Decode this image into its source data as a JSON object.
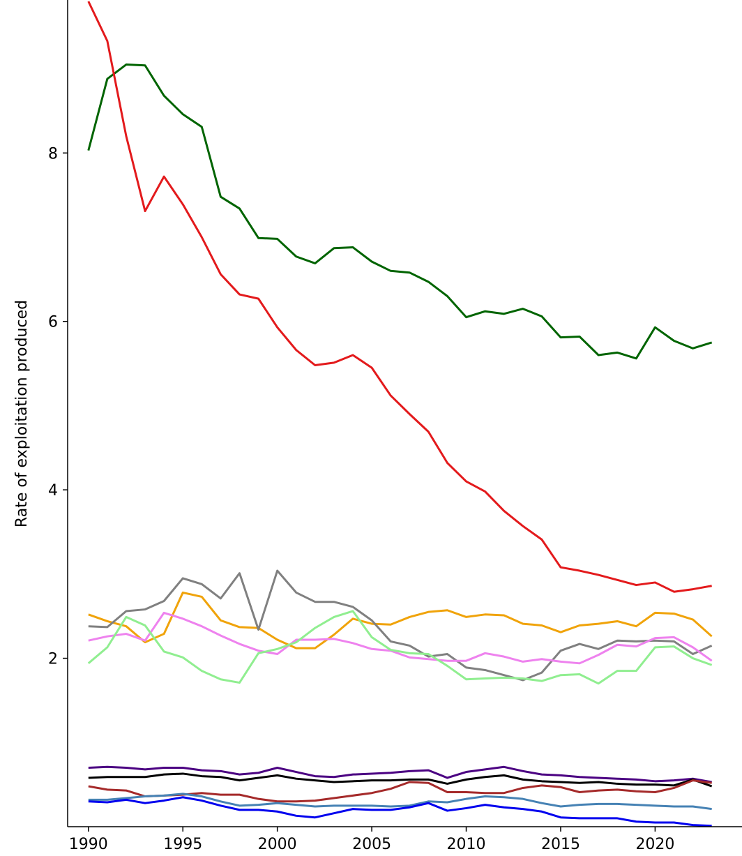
{
  "chart_data": {
    "type": "line",
    "ylabel": "Rate of exploitation produced",
    "x": [
      1990,
      1991,
      1992,
      1993,
      1994,
      1995,
      1996,
      1997,
      1998,
      1999,
      2000,
      2001,
      2002,
      2003,
      2004,
      2005,
      2006,
      2007,
      2008,
      2009,
      2010,
      2011,
      2012,
      2013,
      2014,
      2015,
      2016,
      2017,
      2018,
      2019,
      2020,
      2021,
      2022,
      2023
    ],
    "xlim": [
      1988.9,
      2024.6
    ],
    "xticks": [
      1990,
      1995,
      2000,
      2005,
      2010,
      2015,
      2020
    ],
    "ylim": [
      0,
      9.8
    ],
    "yticks": [
      2,
      4,
      6,
      8
    ],
    "grid": false,
    "series": [
      {
        "color": "#006400",
        "values": [
          8.03,
          8.88,
          9.05,
          9.04,
          8.68,
          8.46,
          8.31,
          7.48,
          7.34,
          6.99,
          6.98,
          6.77,
          6.69,
          6.87,
          6.88,
          6.71,
          6.6,
          6.58,
          6.47,
          6.3,
          6.05,
          6.12,
          6.09,
          6.15,
          6.06,
          5.81,
          5.82,
          5.6,
          5.63,
          5.56,
          5.93,
          5.77,
          5.68,
          5.75
        ]
      },
      {
        "color": "#e31a1c",
        "values": [
          9.8,
          9.33,
          8.2,
          7.31,
          7.72,
          7.39,
          7.0,
          6.56,
          6.32,
          6.27,
          5.93,
          5.66,
          5.48,
          5.51,
          5.6,
          5.45,
          5.12,
          4.9,
          4.69,
          4.32,
          4.1,
          3.98,
          3.75,
          3.57,
          3.41,
          3.08,
          3.04,
          2.99,
          2.93,
          2.87,
          2.9,
          2.79,
          2.82,
          2.86
        ]
      },
      {
        "color": "#f0a30a",
        "values": [
          2.52,
          2.44,
          2.38,
          2.19,
          2.29,
          2.78,
          2.73,
          2.45,
          2.37,
          2.36,
          2.22,
          2.12,
          2.12,
          2.28,
          2.47,
          2.41,
          2.4,
          2.49,
          2.55,
          2.57,
          2.49,
          2.52,
          2.51,
          2.41,
          2.39,
          2.31,
          2.39,
          2.41,
          2.44,
          2.38,
          2.54,
          2.53,
          2.46,
          2.26
        ]
      },
      {
        "color": "#808080",
        "values": [
          2.38,
          2.37,
          2.56,
          2.58,
          2.68,
          2.95,
          2.88,
          2.71,
          3.01,
          2.34,
          3.04,
          2.78,
          2.67,
          2.67,
          2.61,
          2.45,
          2.2,
          2.15,
          2.02,
          2.05,
          1.89,
          1.86,
          1.8,
          1.74,
          1.83,
          2.09,
          2.17,
          2.11,
          2.21,
          2.2,
          2.21,
          2.2,
          2.05,
          2.15
        ]
      },
      {
        "color": "#ee82ee",
        "values": [
          2.21,
          2.26,
          2.29,
          2.21,
          2.54,
          2.47,
          2.38,
          2.27,
          2.17,
          2.09,
          2.05,
          2.22,
          2.22,
          2.23,
          2.18,
          2.11,
          2.09,
          2.01,
          1.99,
          1.97,
          1.97,
          2.06,
          2.02,
          1.96,
          1.99,
          1.96,
          1.94,
          2.04,
          2.16,
          2.14,
          2.24,
          2.25,
          2.13,
          1.97
        ]
      },
      {
        "color": "#90ee90",
        "values": [
          1.94,
          2.13,
          2.49,
          2.39,
          2.08,
          2.01,
          1.85,
          1.75,
          1.71,
          2.06,
          2.11,
          2.19,
          2.36,
          2.49,
          2.56,
          2.25,
          2.1,
          2.06,
          2.05,
          1.91,
          1.75,
          1.76,
          1.77,
          1.76,
          1.73,
          1.8,
          1.81,
          1.7,
          1.85,
          1.85,
          2.13,
          2.14,
          2.0,
          1.92
        ]
      },
      {
        "color": "#4b0082",
        "values": [
          0.7,
          0.71,
          0.7,
          0.68,
          0.7,
          0.7,
          0.67,
          0.66,
          0.62,
          0.64,
          0.7,
          0.65,
          0.6,
          0.59,
          0.62,
          0.63,
          0.64,
          0.66,
          0.67,
          0.58,
          0.65,
          0.68,
          0.71,
          0.66,
          0.62,
          0.61,
          0.59,
          0.58,
          0.57,
          0.56,
          0.54,
          0.55,
          0.57,
          0.53
        ]
      },
      {
        "color": "#000000",
        "values": [
          0.58,
          0.59,
          0.59,
          0.59,
          0.62,
          0.63,
          0.6,
          0.59,
          0.55,
          0.58,
          0.61,
          0.57,
          0.55,
          0.53,
          0.54,
          0.55,
          0.55,
          0.56,
          0.56,
          0.51,
          0.56,
          0.59,
          0.61,
          0.56,
          0.54,
          0.53,
          0.52,
          0.53,
          0.51,
          0.5,
          0.5,
          0.49,
          0.56,
          0.48
        ]
      },
      {
        "color": "#a52a2a",
        "values": [
          0.48,
          0.44,
          0.43,
          0.36,
          0.37,
          0.38,
          0.4,
          0.38,
          0.38,
          0.33,
          0.3,
          0.3,
          0.31,
          0.34,
          0.37,
          0.4,
          0.45,
          0.53,
          0.52,
          0.41,
          0.41,
          0.4,
          0.4,
          0.46,
          0.49,
          0.47,
          0.41,
          0.43,
          0.44,
          0.42,
          0.41,
          0.46,
          0.55,
          0.52
        ]
      },
      {
        "color": "#4682b4",
        "values": [
          0.32,
          0.32,
          0.34,
          0.36,
          0.37,
          0.39,
          0.36,
          0.3,
          0.25,
          0.26,
          0.28,
          0.26,
          0.24,
          0.25,
          0.25,
          0.25,
          0.24,
          0.25,
          0.3,
          0.29,
          0.33,
          0.36,
          0.35,
          0.33,
          0.28,
          0.24,
          0.26,
          0.27,
          0.27,
          0.26,
          0.25,
          0.24,
          0.24,
          0.21
        ]
      },
      {
        "color": "#0000ee",
        "values": [
          0.3,
          0.29,
          0.32,
          0.28,
          0.31,
          0.35,
          0.31,
          0.25,
          0.2,
          0.2,
          0.18,
          0.13,
          0.11,
          0.16,
          0.21,
          0.2,
          0.2,
          0.23,
          0.28,
          0.19,
          0.22,
          0.26,
          0.23,
          0.21,
          0.18,
          0.11,
          0.1,
          0.1,
          0.1,
          0.06,
          0.05,
          0.05,
          0.02,
          0.01
        ]
      }
    ]
  }
}
